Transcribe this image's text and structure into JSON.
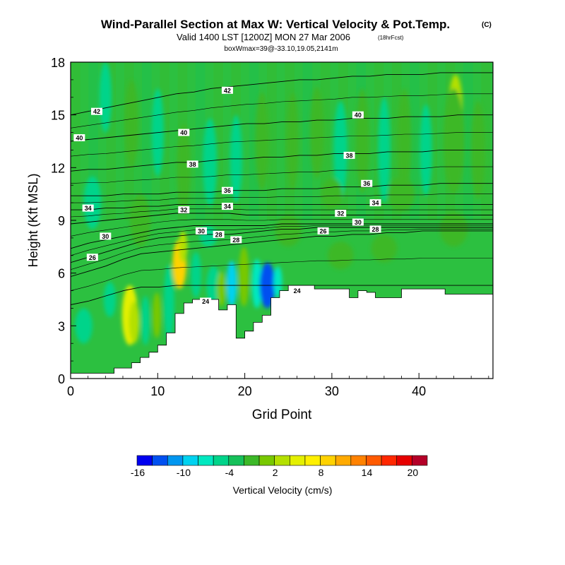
{
  "chart_data": {
    "type": "heatmap",
    "title": "Wind-Parallel Section at Max W: Vertical Velocity & Pot.Temp.",
    "title_mark": "(C)",
    "subtitle": "Valid 1400 LST [1200Z] MON 27 Mar 2006",
    "subtitle_note": "(18hrFcst)",
    "subtitle2": "boxWmax=39@-33.10,19.05,2141m",
    "xlabel": "Grid Point",
    "ylabel": "Height (Kft MSL)",
    "xlim": [
      0,
      48.5
    ],
    "ylim": [
      0,
      18
    ],
    "xticks": [
      0,
      10,
      20,
      30,
      40
    ],
    "xtick_labels": [
      "0",
      "10",
      "20",
      "30",
      "40"
    ],
    "yticks": [
      0,
      3,
      6,
      9,
      12,
      15,
      18
    ],
    "ytick_labels": [
      "0",
      "3",
      "6",
      "9",
      "12",
      "15",
      "18"
    ],
    "colorbar": {
      "label": "Vertical Velocity (cm/s)",
      "tick_labels": [
        "-16",
        "-10",
        "-4",
        "2",
        "8",
        "14",
        "20"
      ],
      "colors": [
        "#0000f0",
        "#0050f0",
        "#0096f0",
        "#00d2f0",
        "#00e8c0",
        "#00d48a",
        "#16c05a",
        "#3cb828",
        "#78c800",
        "#b4e000",
        "#e4f000",
        "#fff000",
        "#ffd200",
        "#ffaa00",
        "#ff8200",
        "#ff5a00",
        "#ff2800",
        "#e60000",
        "#b40028"
      ]
    },
    "terrain": [
      [
        0,
        0.3
      ],
      [
        5,
        0.3
      ],
      [
        5,
        0.6
      ],
      [
        7,
        0.6
      ],
      [
        7,
        0.9
      ],
      [
        8,
        0.9
      ],
      [
        8,
        1.2
      ],
      [
        9,
        1.2
      ],
      [
        9,
        1.5
      ],
      [
        10,
        1.5
      ],
      [
        10,
        1.9
      ],
      [
        11,
        1.9
      ],
      [
        11,
        2.6
      ],
      [
        12,
        2.6
      ],
      [
        12,
        3.7
      ],
      [
        13,
        3.7
      ],
      [
        13,
        4.3
      ],
      [
        14,
        4.3
      ],
      [
        14,
        4.5
      ],
      [
        17,
        4.5
      ],
      [
        17,
        3.9
      ],
      [
        18,
        3.9
      ],
      [
        18,
        4.2
      ],
      [
        19,
        4.2
      ],
      [
        19,
        2.3
      ],
      [
        20,
        2.3
      ],
      [
        20,
        2.7
      ],
      [
        21,
        2.7
      ],
      [
        21,
        3.2
      ],
      [
        22,
        3.2
      ],
      [
        22,
        3.6
      ],
      [
        23,
        3.6
      ],
      [
        23,
        4.6
      ],
      [
        24,
        4.6
      ],
      [
        24,
        5.0
      ],
      [
        25,
        5.0
      ],
      [
        25,
        5.3
      ],
      [
        28,
        5.3
      ],
      [
        28,
        5.1
      ],
      [
        32,
        5.1
      ],
      [
        32,
        4.6
      ],
      [
        33,
        4.6
      ],
      [
        33,
        5.0
      ],
      [
        34,
        5.0
      ],
      [
        34,
        4.9
      ],
      [
        35,
        4.9
      ],
      [
        35,
        4.6
      ],
      [
        38,
        4.6
      ],
      [
        38,
        5.1
      ],
      [
        43,
        5.1
      ],
      [
        43,
        4.8
      ],
      [
        48.5,
        4.8
      ]
    ],
    "w_cells": [
      {
        "x": 6.8,
        "y": 3.6,
        "sx": 0.9,
        "sy": 1.7,
        "w": 13
      },
      {
        "x": 7.3,
        "y": 3.2,
        "sx": 0.6,
        "sy": 1.2,
        "w": 8
      },
      {
        "x": 8.6,
        "y": 3.3,
        "sx": 0.5,
        "sy": 1.4,
        "w": -4
      },
      {
        "x": 9.9,
        "y": 3.6,
        "sx": 0.5,
        "sy": 1.3,
        "w": 6
      },
      {
        "x": 11.3,
        "y": 4.3,
        "sx": 0.6,
        "sy": 2.2,
        "w": -4
      },
      {
        "x": 12.5,
        "y": 6.5,
        "sx": 0.8,
        "sy": 1.4,
        "w": 17
      },
      {
        "x": 12.9,
        "y": 7.5,
        "sx": 0.5,
        "sy": 0.9,
        "w": 8
      },
      {
        "x": 14.4,
        "y": 5.9,
        "sx": 0.6,
        "sy": 1.3,
        "w": -4
      },
      {
        "x": 16.4,
        "y": 5.3,
        "sx": 0.8,
        "sy": 1.1,
        "w": -4
      },
      {
        "x": 17.3,
        "y": 5.1,
        "sx": 0.5,
        "sy": 1.0,
        "w": 7
      },
      {
        "x": 18.5,
        "y": 5.4,
        "sx": 0.6,
        "sy": 1.3,
        "w": -8
      },
      {
        "x": 19.9,
        "y": 5.8,
        "sx": 0.6,
        "sy": 1.7,
        "w": 6
      },
      {
        "x": 21.4,
        "y": 5.4,
        "sx": 0.6,
        "sy": 1.4,
        "w": -5
      },
      {
        "x": 22.6,
        "y": 5.3,
        "sx": 0.9,
        "sy": 1.3,
        "w": -15
      },
      {
        "x": 23.8,
        "y": 5.5,
        "sx": 0.5,
        "sy": 0.9,
        "w": -6
      },
      {
        "x": 15.8,
        "y": 8.1,
        "sx": 1.0,
        "sy": 0.6,
        "w": -4
      },
      {
        "x": 25.0,
        "y": 8.4,
        "sx": 1.5,
        "sy": 0.9,
        "w": 2
      },
      {
        "x": 31.0,
        "y": 7.0,
        "sx": 1.5,
        "sy": 0.8,
        "w": 2
      },
      {
        "x": 36.0,
        "y": 7.4,
        "sx": 1.5,
        "sy": 0.8,
        "w": 2
      },
      {
        "x": 44.0,
        "y": 8.5,
        "sx": 1.6,
        "sy": 1.0,
        "w": 2
      },
      {
        "x": 44.2,
        "y": 15.3,
        "sx": 0.8,
        "sy": 2.0,
        "w": 8
      },
      {
        "x": 44.0,
        "y": 13.5,
        "sx": 1.2,
        "sy": 3.0,
        "w": 2
      },
      {
        "x": 40.8,
        "y": 13.0,
        "sx": 0.7,
        "sy": 2.6,
        "w": -4
      },
      {
        "x": 46.8,
        "y": 13.0,
        "sx": 0.8,
        "sy": 2.8,
        "w": 2
      },
      {
        "x": 38.3,
        "y": 13.5,
        "sx": 0.8,
        "sy": 3.0,
        "w": 2
      },
      {
        "x": 36.0,
        "y": 13.0,
        "sx": 0.7,
        "sy": 3.0,
        "w": -4
      },
      {
        "x": 33.5,
        "y": 13.5,
        "sx": 0.8,
        "sy": 3.0,
        "w": 2
      },
      {
        "x": 31.0,
        "y": 13.0,
        "sx": 0.8,
        "sy": 2.8,
        "w": -4
      },
      {
        "x": 28.3,
        "y": 14.0,
        "sx": 0.8,
        "sy": 2.6,
        "w": 2
      },
      {
        "x": 25.5,
        "y": 13.5,
        "sx": 0.7,
        "sy": 2.8,
        "w": 2
      },
      {
        "x": 22.0,
        "y": 13.5,
        "sx": 0.8,
        "sy": 2.8,
        "w": 2
      },
      {
        "x": 19.0,
        "y": 12.5,
        "sx": 0.7,
        "sy": 2.5,
        "w": -4
      },
      {
        "x": 16.0,
        "y": 12.3,
        "sx": 0.8,
        "sy": 2.5,
        "w": -4
      },
      {
        "x": 13.0,
        "y": 12.0,
        "sx": 0.8,
        "sy": 2.5,
        "w": 2
      },
      {
        "x": 10.0,
        "y": 14.0,
        "sx": 0.7,
        "sy": 2.5,
        "w": -4
      },
      {
        "x": 7.0,
        "y": 14.5,
        "sx": 0.8,
        "sy": 2.5,
        "w": 2
      },
      {
        "x": 4.0,
        "y": 16.0,
        "sx": 0.7,
        "sy": 2.0,
        "w": -4
      },
      {
        "x": 2.5,
        "y": 10.0,
        "sx": 1.0,
        "sy": 1.5,
        "w": -4
      },
      {
        "x": 8.0,
        "y": 9.0,
        "sx": 1.2,
        "sy": 1.5,
        "w": 2
      },
      {
        "x": 38.0,
        "y": 10.5,
        "sx": 1.5,
        "sy": 1.0,
        "w": 2
      },
      {
        "x": 30.0,
        "y": 10.5,
        "sx": 1.2,
        "sy": 0.9,
        "w": 2
      },
      {
        "x": 1.5,
        "y": 3.0,
        "sx": 1.0,
        "sy": 1.0,
        "w": -4
      },
      {
        "x": 4.5,
        "y": 4.5,
        "sx": 0.7,
        "sy": 1.0,
        "w": -4
      }
    ],
    "theta_contours": [
      {
        "level": 24,
        "label": "24",
        "h": [
          4.2,
          4.4,
          4.7,
          5.0,
          5.2,
          5.2,
          5.3,
          5.3,
          5.3,
          5.3,
          5.3,
          5.3,
          5.3,
          5.3,
          5.3,
          5.3,
          5.3,
          5.3,
          5.3,
          5.3,
          5.3,
          5.3,
          5.3,
          5.3,
          5.3
        ],
        "label_positions": [
          [
            15.5,
            4.4
          ],
          [
            26,
            5.0
          ]
        ]
      },
      {
        "level": 26,
        "label": "26",
        "h": [
          5.8,
          6.1,
          6.4,
          6.8,
          7.1,
          7.2,
          7.3,
          7.4,
          7.5,
          7.6,
          7.7,
          7.8,
          7.9,
          8.0,
          8.1,
          8.1,
          8.2,
          8.2,
          8.3,
          8.3,
          8.4,
          8.4,
          8.4,
          8.4,
          8.4
        ],
        "label_positions": [
          [
            2.5,
            6.9
          ],
          [
            29,
            8.4
          ]
        ]
      },
      {
        "level": 28,
        "label": "28",
        "h": [
          6.6,
          6.9,
          7.2,
          7.5,
          7.8,
          8.0,
          8.1,
          8.2,
          8.2,
          8.2,
          8.3,
          8.4,
          8.5,
          8.5,
          8.6,
          8.6,
          8.6,
          8.6,
          8.6,
          8.6,
          8.6,
          8.6,
          8.6,
          8.6,
          8.6
        ],
        "label_positions": [
          [
            17,
            8.2
          ],
          [
            19,
            7.9
          ],
          [
            35,
            8.5
          ]
        ]
      },
      {
        "level": 30,
        "label": "30",
        "h": [
          7.4,
          7.7,
          7.9,
          8.1,
          8.3,
          8.5,
          8.6,
          8.7,
          8.7,
          8.7,
          8.7,
          8.7,
          8.8,
          8.8,
          8.8,
          8.8,
          8.8,
          8.8,
          8.8,
          8.8,
          8.8,
          8.8,
          8.8,
          8.8,
          8.8
        ],
        "label_positions": [
          [
            4,
            8.1
          ],
          [
            15,
            8.4
          ],
          [
            33,
            8.9
          ]
        ]
      },
      {
        "level": 32,
        "label": "32",
        "h": [
          8.8,
          8.9,
          9.0,
          9.1,
          9.2,
          9.3,
          9.4,
          9.4,
          9.4,
          9.4,
          9.3,
          9.3,
          9.3,
          9.3,
          9.3,
          9.3,
          9.3,
          9.3,
          9.3,
          9.3,
          9.3,
          9.3,
          9.3,
          9.3,
          9.3
        ],
        "label_positions": [
          [
            13,
            9.6
          ],
          [
            31,
            9.4
          ]
        ]
      },
      {
        "level": 34,
        "label": "34",
        "h": [
          9.6,
          9.6,
          9.7,
          9.7,
          9.8,
          9.8,
          9.9,
          9.9,
          9.9,
          9.9,
          9.9,
          9.9,
          9.9,
          9.9,
          9.9,
          9.9,
          9.9,
          9.9,
          9.9,
          9.9,
          9.9,
          9.9,
          9.9,
          9.9,
          9.9
        ],
        "label_positions": [
          [
            2,
            9.7
          ],
          [
            18,
            9.8
          ],
          [
            35,
            10.0
          ]
        ]
      },
      {
        "level": 36,
        "label": "36",
        "h": [
          10.4,
          10.4,
          10.4,
          10.5,
          10.5,
          10.5,
          10.6,
          10.6,
          10.6,
          10.7,
          10.7,
          10.7,
          10.8,
          10.8,
          10.8,
          10.9,
          10.9,
          10.9,
          11.0,
          11.0,
          11.0,
          11.1,
          11.1,
          11.1,
          11.1
        ],
        "label_positions": [
          [
            18,
            10.7
          ],
          [
            34,
            11.1
          ]
        ]
      },
      {
        "level": 38,
        "label": "38",
        "h": [
          11.8,
          11.9,
          11.9,
          12.0,
          12.1,
          12.2,
          12.3,
          12.3,
          12.4,
          12.5,
          12.5,
          12.6,
          12.6,
          12.7,
          12.7,
          12.8,
          12.8,
          12.8,
          12.9,
          12.9,
          12.9,
          13.0,
          13.0,
          13.0,
          13.0
        ],
        "label_positions": [
          [
            14,
            12.2
          ],
          [
            32,
            12.7
          ]
        ]
      },
      {
        "level": 40,
        "label": "40",
        "h": [
          13.5,
          13.6,
          13.7,
          13.8,
          13.9,
          14.0,
          14.1,
          14.2,
          14.3,
          14.4,
          14.5,
          14.5,
          14.6,
          14.6,
          14.7,
          14.7,
          14.8,
          14.8,
          14.8,
          14.9,
          14.9,
          14.9,
          15.0,
          15.0,
          15.0
        ],
        "label_positions": [
          [
            1,
            13.7
          ],
          [
            13,
            14.0
          ],
          [
            33,
            15.0
          ]
        ]
      },
      {
        "level": 42,
        "label": "42",
        "h": [
          15.0,
          15.2,
          15.4,
          15.6,
          15.8,
          16.0,
          16.2,
          16.3,
          16.5,
          16.6,
          16.7,
          16.8,
          16.9,
          17.0,
          17.0,
          17.1,
          17.2,
          17.2,
          17.3,
          17.3,
          17.3,
          17.4,
          17.4,
          17.4,
          17.4
        ],
        "label_positions": [
          [
            3,
            15.2
          ],
          [
            18,
            16.4
          ]
        ]
      }
    ]
  }
}
